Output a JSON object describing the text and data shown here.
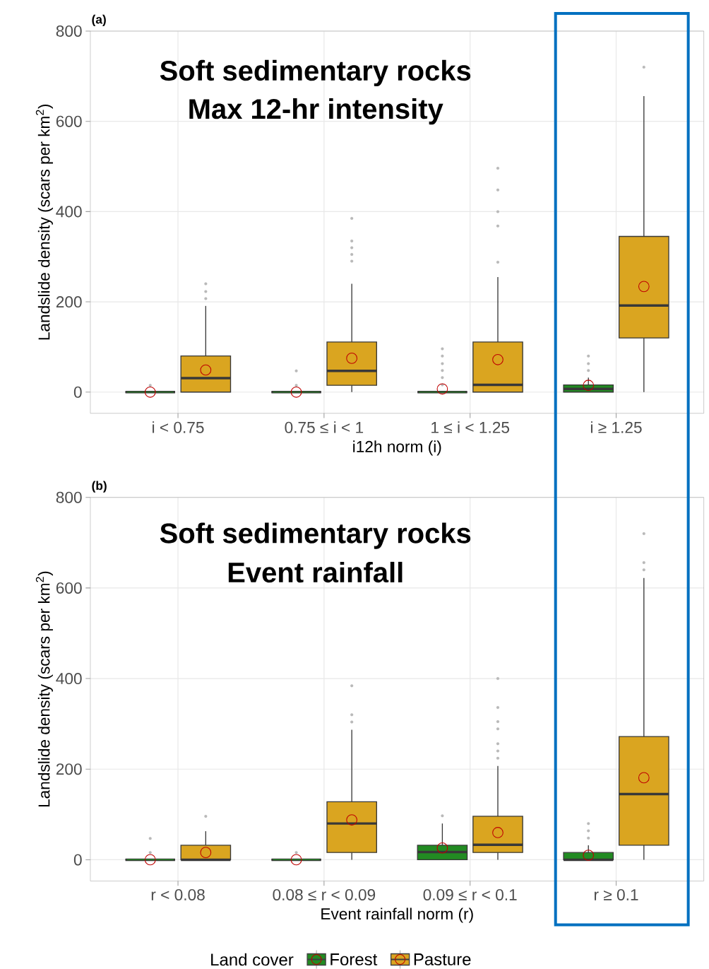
{
  "chart_data": [
    {
      "type": "box",
      "title": "Soft sedimentary rocks",
      "subtitle": "Max 12-hr intensity",
      "annotations": [
        "(a)"
      ],
      "xlabel": "i12h norm (i)",
      "ylabel": "Landslide density (scars per km$^{2}$)",
      "categories": [
        "i < 0.75",
        "0.75 ≤ i < 1",
        "1 ≤ i < 1.25",
        "i ≥ 1.25"
      ],
      "ylim": [
        -47,
        800
      ],
      "yticks": [
        0,
        200,
        400,
        600,
        800
      ],
      "grid": true,
      "series": [
        {
          "color": "#228b22",
          "boxes": [
            {
              "low": 0,
              "q1": 0,
              "median": 0,
              "q3": 0,
              "high": 0,
              "mean": 0,
              "outliers": [
                15
              ]
            },
            {
              "low": 0,
              "q1": 0,
              "median": 0,
              "q3": 0,
              "high": 0,
              "mean": 0,
              "outliers": [
                15,
                47
              ]
            },
            {
              "low": 0,
              "q1": 0,
              "median": 0,
              "q3": 0,
              "high": 0,
              "mean": 7,
              "outliers": [
                16,
                32,
                48,
                63,
                80,
                96
              ]
            },
            {
              "low": 0,
              "q1": 0,
              "median": 7,
              "q3": 16,
              "high": 32,
              "mean": 15,
              "outliers": [
                48,
                63,
                80
              ]
            }
          ]
        },
        {
          "color": "#daa520",
          "boxes": [
            {
              "low": 0,
              "q1": 0,
              "median": 31,
              "q3": 80,
              "high": 191,
              "mean": 49,
              "outliers": [
                207,
                223,
                240
              ]
            },
            {
              "low": 0,
              "q1": 15,
              "median": 47,
              "q3": 111,
              "high": 240,
              "mean": 75,
              "outliers": [
                290,
                305,
                320,
                335,
                385
              ]
            },
            {
              "low": 0,
              "q1": 0,
              "median": 16,
              "q3": 111,
              "high": 255,
              "mean": 72,
              "outliers": [
                288,
                368,
                400,
                448,
                496
              ]
            },
            {
              "low": 0,
              "q1": 120,
              "median": 192,
              "q3": 345,
              "high": 656,
              "mean": 234,
              "outliers": [
                720
              ]
            }
          ]
        }
      ]
    },
    {
      "type": "box",
      "title": "Soft sedimentary rocks",
      "subtitle": "Event rainfall",
      "annotations": [
        "(b)"
      ],
      "xlabel": "Event rainfall norm (r)",
      "ylabel": "Landslide density (scars per km$^{2}$)",
      "categories": [
        "r < 0.08",
        "0.08 ≤ r < 0.09",
        "0.09 ≤ r < 0.1",
        "r ≥ 0.1"
      ],
      "ylim": [
        -47,
        800
      ],
      "yticks": [
        0,
        200,
        400,
        600,
        800
      ],
      "grid": true,
      "legend": "bottom",
      "legend_title": "Land cover",
      "series": [
        {
          "name": "Forest",
          "color": "#228b22",
          "boxes": [
            {
              "low": 0,
              "q1": 0,
              "median": 0,
              "q3": 0,
              "high": 0,
              "mean": 0,
              "outliers": [
                16,
                47
              ]
            },
            {
              "low": 0,
              "q1": 0,
              "median": 0,
              "q3": 0,
              "high": 0,
              "mean": 0,
              "outliers": [
                16
              ]
            },
            {
              "low": 0,
              "q1": 0,
              "median": 17,
              "q3": 32,
              "high": 80,
              "mean": 26,
              "outliers": [
                97
              ]
            },
            {
              "low": 0,
              "q1": 0,
              "median": 0,
              "q3": 16,
              "high": 32,
              "mean": 10,
              "outliers": [
                48,
                64,
                80
              ]
            }
          ]
        },
        {
          "name": "Pasture",
          "color": "#daa520",
          "boxes": [
            {
              "low": 0,
              "q1": 0,
              "median": 0,
              "q3": 32,
              "high": 63,
              "mean": 16,
              "outliers": [
                96
              ]
            },
            {
              "low": 0,
              "q1": 16,
              "median": 80,
              "q3": 128,
              "high": 287,
              "mean": 88,
              "outliers": [
                304,
                320,
                384
              ]
            },
            {
              "low": 0,
              "q1": 16,
              "median": 33,
              "q3": 96,
              "high": 207,
              "mean": 60,
              "outliers": [
                224,
                240,
                256,
                289,
                305,
                336,
                400
              ]
            },
            {
              "low": 0,
              "q1": 32,
              "median": 145,
              "q3": 272,
              "high": 622,
              "mean": 181,
              "outliers": [
                640,
                656,
                720
              ]
            }
          ]
        }
      ]
    }
  ]
}
